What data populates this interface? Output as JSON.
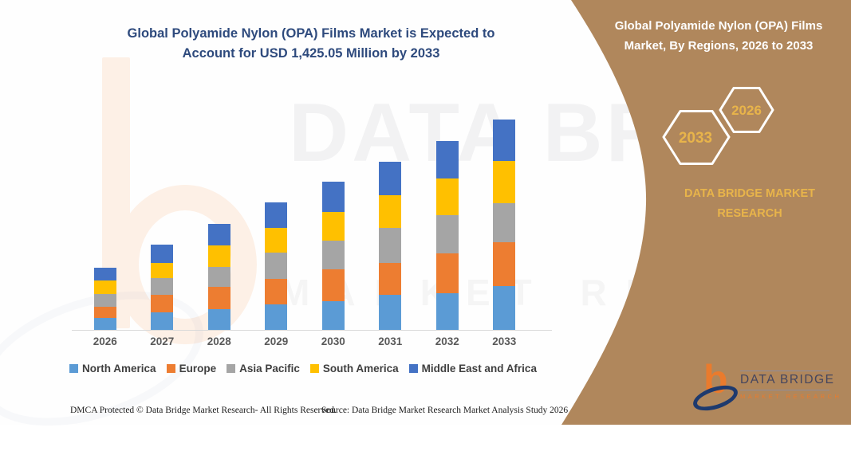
{
  "header": {
    "title_lines": [
      "Global Polyamide Nylon (OPA) Films Market is Expected to",
      "Account for USD 1,425.05 Million by 2033"
    ],
    "title_color": "#2e4a7d"
  },
  "side_panel": {
    "title_lines": [
      "Global Polyamide Nylon (OPA) Films",
      "Market, By Regions, 2026 to 2033"
    ],
    "hexagon_back_label": "2033",
    "hexagon_front_label": "2026",
    "brand_lines": [
      "DATA BRIDGE MARKET",
      "RESEARCH"
    ],
    "background_color": "#b0875c",
    "accent_gold": "#e8b44a"
  },
  "watermarks": {
    "brand_top": "DATA BRIDGE",
    "brand_bottom": "MARKET RESEARCH"
  },
  "logo": {
    "b_glyph": "b",
    "name": "DATA BRIDGE",
    "subtitle": "MARKET RESEARCH",
    "orange": "#ea7b2d",
    "navy": "#1e3a6e"
  },
  "chart_data": {
    "type": "bar",
    "stacked": true,
    "title": "Global Polyamide Nylon (OPA) Films Market, By Regions, 2026 to 2033",
    "unit": "USD Million",
    "categories": [
      "2026",
      "2027",
      "2028",
      "2029",
      "2030",
      "2031",
      "2032",
      "2033"
    ],
    "series": [
      {
        "name": "North America",
        "color": "#5B9BD5",
        "values": [
          81.0,
          118.8,
          140.3,
          172.7,
          194.3,
          237.5,
          248.3,
          296.9
        ]
      },
      {
        "name": "Europe",
        "color": "#ED7D31",
        "values": [
          75.6,
          118.8,
          151.1,
          172.7,
          215.9,
          215.9,
          269.9,
          296.9
        ]
      },
      {
        "name": "Asia Pacific",
        "color": "#A5A5A5",
        "values": [
          86.4,
          113.4,
          135.0,
          178.1,
          194.3,
          237.5,
          259.1,
          264.5
        ]
      },
      {
        "name": "South America",
        "color": "#FFC000",
        "values": [
          91.8,
          102.6,
          145.7,
          167.3,
          194.3,
          221.3,
          248.3,
          286.1
        ]
      },
      {
        "name": "Middle East and Africa",
        "color": "#4472C4",
        "values": [
          86.4,
          124.2,
          145.7,
          172.7,
          205.1,
          226.7,
          253.7,
          280.65
        ]
      }
    ],
    "totals_usd_million": [
      421.2,
      577.8,
      717.8,
      863.5,
      1004.0,
      1139.0,
      1279.3,
      1425.05
    ],
    "xlabel": "",
    "ylabel": "",
    "ylim": [
      0,
      1425.05
    ],
    "grid": false,
    "legend_position": "bottom",
    "x_tick_color": "#595959",
    "axis_line_color": "#d9d9d9"
  },
  "footer": {
    "dmca": "DMCA Protected © Data Bridge Market Research- All Rights Reserved.",
    "source": "Source: Data Bridge Market Research Market Analysis Study 2026"
  }
}
